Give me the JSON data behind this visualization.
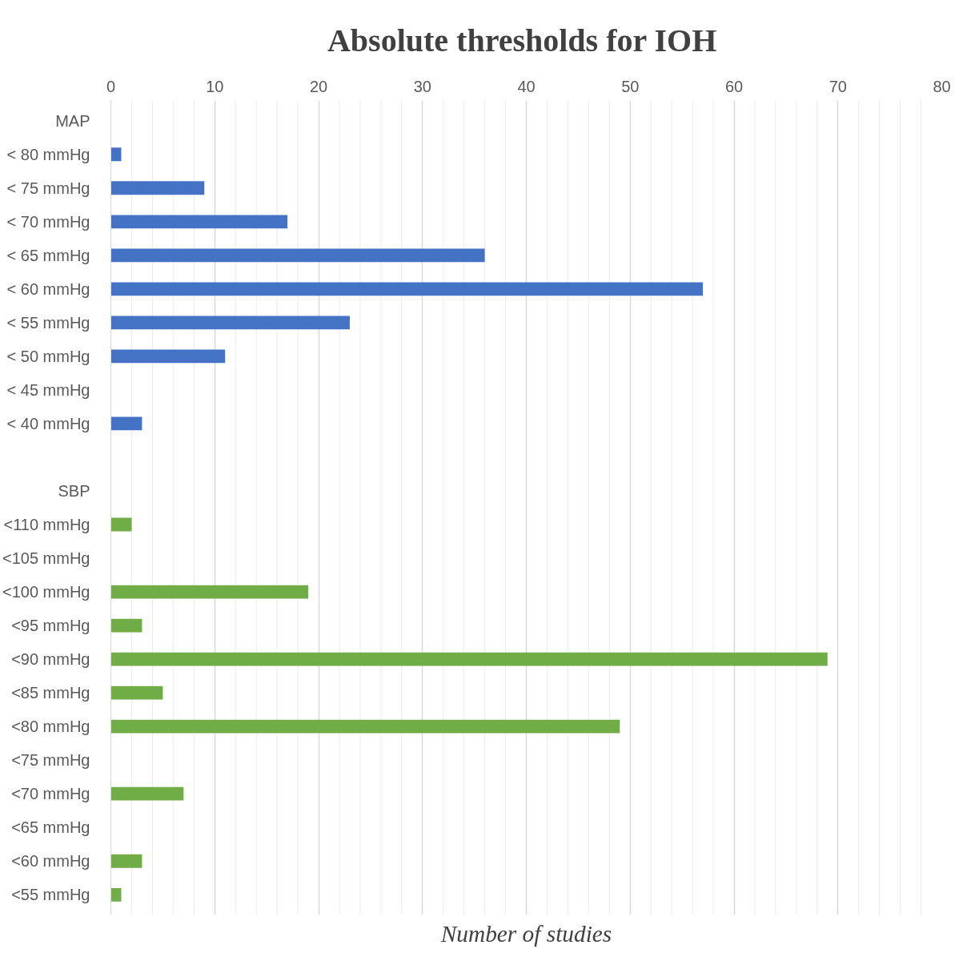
{
  "chart_data": {
    "type": "bar",
    "orientation": "horizontal",
    "title": "Absolute thresholds  for IOH",
    "xlabel": "Number of studies",
    "categories": [
      "MAP",
      "< 80 mmHg",
      "< 75 mmHg",
      "< 70 mmHg",
      "< 65 mmHg",
      "< 60 mmHg",
      "< 55 mmHg",
      "< 50 mmHg",
      "< 45 mmHg",
      "< 40 mmHg",
      null,
      "SBP",
      "<110 mmHg",
      "<105 mmHg",
      "<100 mmHg",
      "<95 mmHg",
      "<90 mmHg",
      "<85 mmHg",
      "<80 mmHg",
      "<75 mmHg",
      "<70 mmHg",
      "<65 mmHg",
      "<60 mmHg",
      "<55 mmHg"
    ],
    "values": [
      null,
      1,
      9,
      17,
      36,
      57,
      23,
      11,
      null,
      3,
      null,
      null,
      2,
      null,
      19,
      3,
      69,
      5,
      49,
      null,
      7,
      null,
      3,
      1
    ],
    "colors": [
      "#4472c4",
      "#4472c4",
      "#4472c4",
      "#4472c4",
      "#4472c4",
      "#4472c4",
      "#4472c4",
      "#4472c4",
      "#4472c4",
      "#4472c4",
      "#4472c4",
      "#70ad47",
      "#70ad47",
      "#70ad47",
      "#70ad47",
      "#70ad47",
      "#70ad47",
      "#70ad47",
      "#70ad47",
      "#70ad47",
      "#70ad47",
      "#70ad47",
      "#70ad47",
      "#70ad47"
    ],
    "xlim": [
      0,
      80
    ],
    "xticks": [
      0,
      {
        "value": 2,
        "label": null
      },
      {
        "value": 4,
        "label": null
      },
      {
        "value": 6,
        "label": null
      },
      {
        "value": 8,
        "label": null
      },
      10,
      {
        "value": 12,
        "label": null
      },
      {
        "value": 14,
        "label": null
      },
      {
        "value": 16,
        "label": null
      },
      {
        "value": 18,
        "label": null
      },
      20,
      {
        "value": 22,
        "label": null
      },
      {
        "value": 24,
        "label": null
      },
      {
        "value": 26,
        "label": null
      },
      {
        "value": 28,
        "label": null
      },
      30,
      {
        "value": 32,
        "label": null
      },
      {
        "value": 34,
        "label": null
      },
      {
        "value": 36,
        "label": null
      },
      {
        "value": 38,
        "label": null
      },
      40,
      {
        "value": 42,
        "label": null
      },
      {
        "value": 44,
        "label": null
      },
      {
        "value": 46,
        "label": null
      },
      {
        "value": 48,
        "label": null
      },
      50,
      {
        "value": 52,
        "label": null
      },
      {
        "value": 54,
        "label": null
      },
      {
        "value": 56,
        "label": null
      },
      {
        "value": 58,
        "label": null
      },
      60,
      {
        "value": 62,
        "label": null
      },
      {
        "value": 64,
        "label": null
      },
      {
        "value": 66,
        "label": null
      },
      {
        "value": 68,
        "label": null
      },
      70,
      {
        "value": 72,
        "label": null
      },
      {
        "value": 74,
        "label": null
      },
      {
        "value": 76,
        "label": null
      },
      {
        "value": 78,
        "label": null
      },
      80
    ],
    "grid": "x"
  }
}
